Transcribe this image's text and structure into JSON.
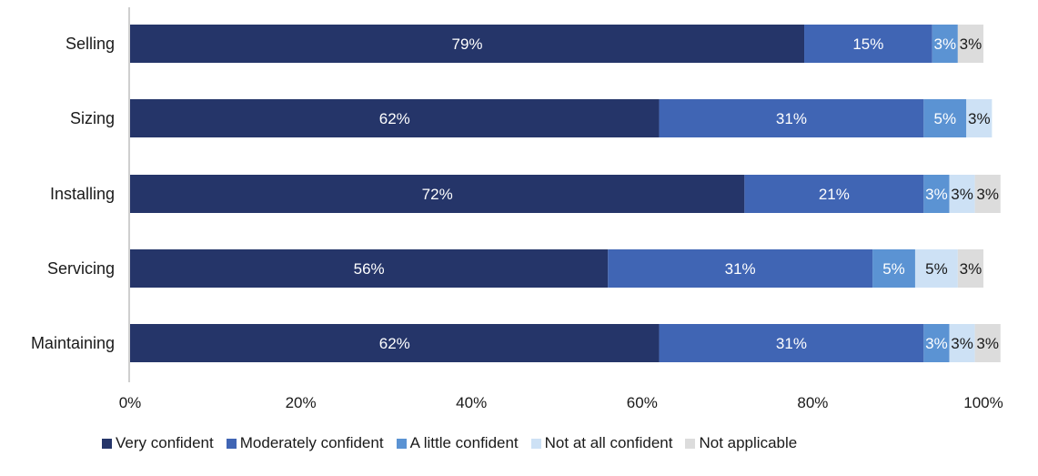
{
  "chart_data": {
    "type": "bar",
    "orientation": "horizontal",
    "stacked": true,
    "categories": [
      "Selling",
      "Sizing",
      "Installing",
      "Servicing",
      "Maintaining"
    ],
    "series": [
      {
        "name": "Very confident",
        "color": "#253569",
        "label_color": "#ffffff",
        "values": [
          79,
          62,
          72,
          56,
          62
        ],
        "labels": [
          "79%",
          "62%",
          "72%",
          "56%",
          "62%"
        ]
      },
      {
        "name": "Moderately confident",
        "color": "#4065b4",
        "label_color": "#ffffff",
        "values": [
          15,
          31,
          21,
          31,
          31
        ],
        "labels": [
          "15%",
          "31%",
          "21%",
          "31%",
          "31%"
        ]
      },
      {
        "name": "A little confident",
        "color": "#5b93d3",
        "label_color": "#ffffff",
        "values": [
          3,
          5,
          3,
          5,
          3
        ],
        "labels": [
          "3%",
          "5%",
          "3%",
          "5%",
          "3%"
        ]
      },
      {
        "name": "Not at all confident",
        "color": "#cde1f5",
        "label_color": "#1a1a1a",
        "values": [
          0,
          3,
          3,
          5,
          3
        ],
        "labels": [
          "",
          "3%",
          "3%",
          "5%",
          "3%"
        ]
      },
      {
        "name": "Not applicable",
        "color": "#dcdcdc",
        "label_color": "#1a1a1a",
        "values": [
          3,
          0,
          3,
          3,
          3
        ],
        "labels": [
          "3%",
          "",
          "3%",
          "3%",
          "3%"
        ]
      }
    ],
    "xlim": [
      0,
      100
    ],
    "xticks": [
      0,
      20,
      40,
      60,
      80,
      100
    ],
    "xtick_labels": [
      "0%",
      "20%",
      "40%",
      "60%",
      "80%",
      "100%"
    ],
    "xlabel": "",
    "ylabel": "",
    "legend_position": "bottom"
  }
}
